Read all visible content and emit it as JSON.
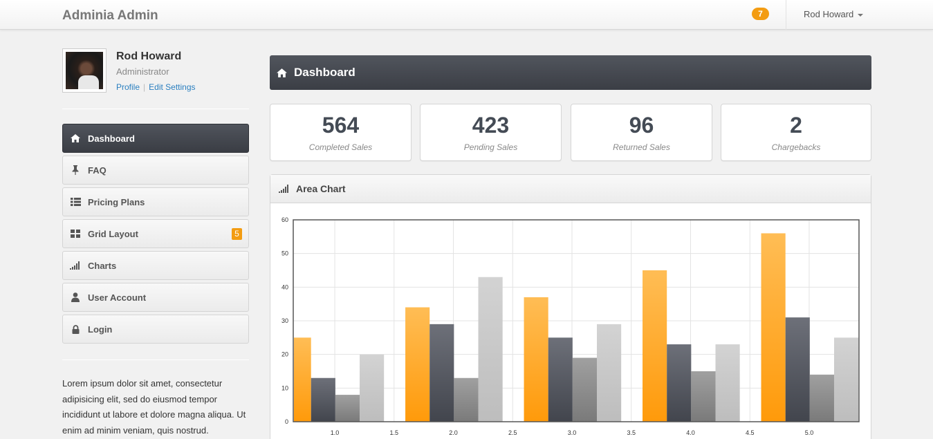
{
  "navbar": {
    "brand": "Adminia Admin",
    "notification_count": "7",
    "user_name": "Rod Howard"
  },
  "profile": {
    "name": "Rod Howard",
    "role": "Administrator",
    "profile_link": "Profile",
    "settings_link": "Edit Settings"
  },
  "sidebar": {
    "items": [
      {
        "label": "Dashboard",
        "icon": "home-icon",
        "active": true
      },
      {
        "label": "FAQ",
        "icon": "pushpin-icon"
      },
      {
        "label": "Pricing Plans",
        "icon": "list-icon"
      },
      {
        "label": "Grid Layout",
        "icon": "grid-icon",
        "badge": "5"
      },
      {
        "label": "Charts",
        "icon": "signal-bars-icon"
      },
      {
        "label": "User Account",
        "icon": "user-icon"
      },
      {
        "label": "Login",
        "icon": "lock-icon"
      }
    ],
    "text": "Lorem ipsum dolor sit amet, consectetur adipisicing elit, sed do eiusmod tempor incididunt ut labore et dolore magna aliqua. Ut enim ad minim veniam, quis nostrud."
  },
  "main": {
    "title": "Dashboard",
    "stats": [
      {
        "value": "564",
        "label": "Completed Sales"
      },
      {
        "value": "423",
        "label": "Pending Sales"
      },
      {
        "value": "96",
        "label": "Returned Sales"
      },
      {
        "value": "2",
        "label": "Chargebacks"
      }
    ],
    "chart_panel_title": "Area Chart"
  },
  "colors": {
    "accent": "#f39c12",
    "dark": "#3b3e45",
    "series": [
      "#ff9f1a",
      "#4d5059",
      "#8a8a8a",
      "#c8c8c8"
    ]
  },
  "chart_data": {
    "type": "bar",
    "x": [
      1,
      2,
      3,
      4,
      5
    ],
    "xticks": [
      "1.0",
      "1.5",
      "2.0",
      "2.5",
      "3.0",
      "3.5",
      "4.0",
      "4.5",
      "5.0"
    ],
    "xlim": [
      0.65,
      5.42
    ],
    "ylim": [
      0,
      60
    ],
    "yticks": [
      "0",
      "10",
      "20",
      "30",
      "40",
      "50",
      "60"
    ],
    "grid": true,
    "legend": "none",
    "series": [
      {
        "values": [
          25,
          34,
          37,
          45,
          56
        ]
      },
      {
        "values": [
          13,
          29,
          25,
          23,
          31
        ]
      },
      {
        "values": [
          8,
          13,
          19,
          15,
          14
        ]
      },
      {
        "values": [
          20,
          43,
          29,
          23,
          25
        ]
      }
    ]
  }
}
